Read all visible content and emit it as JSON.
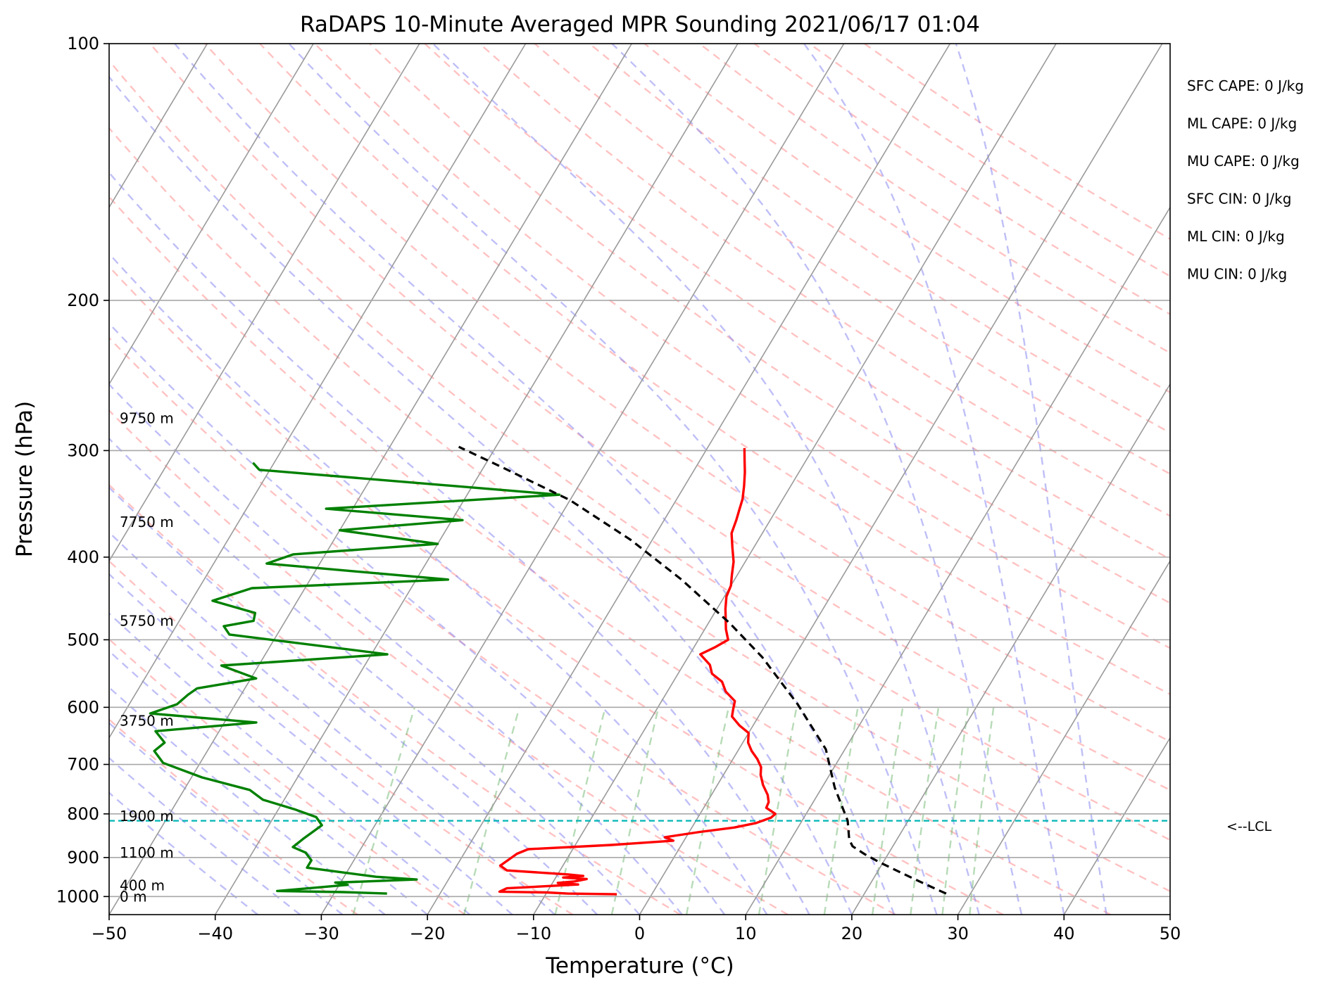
{
  "chart_data": {
    "type": "line",
    "title": "RaDAPS 10-Minute Averaged MPR Sounding 2021/06/17 01:04",
    "xlabel": "Temperature (°C)",
    "ylabel": "Pressure (hPa)",
    "xlim": [
      -50,
      50
    ],
    "ylim": [
      1050,
      100
    ],
    "y_scale": "log",
    "skew": "skew-T",
    "grid": true,
    "x_ticks": [
      -50,
      -40,
      -30,
      -20,
      -10,
      0,
      10,
      20,
      30,
      40,
      50
    ],
    "x_tick_labels": [
      "−50",
      "−40",
      "−30",
      "−20",
      "−10",
      "0",
      "10",
      "20",
      "30",
      "40",
      "50"
    ],
    "y_ticks": [
      1000,
      900,
      800,
      700,
      600,
      500,
      400,
      300,
      200,
      100
    ],
    "y_tick_labels": [
      "1000",
      "900",
      "800",
      "700",
      "600",
      "500",
      "400",
      "300",
      "200",
      "100"
    ],
    "height_labels": [
      {
        "label": "9750 m",
        "p": 275
      },
      {
        "label": "7750 m",
        "p": 364
      },
      {
        "label": "5750 m",
        "p": 475
      },
      {
        "label": "3750 m",
        "p": 622
      },
      {
        "label": "1900 m",
        "p": 805
      },
      {
        "label": "1100 m",
        "p": 888
      },
      {
        "label": "400 m",
        "p": 970
      },
      {
        "label": "0 m",
        "p": 1000
      }
    ],
    "indices": [
      "SFC CAPE: 0 J/kg",
      "ML CAPE: 0 J/kg",
      "MU CAPE: 0 J/kg",
      "SFC CIN: 0 J/kg",
      "ML CIN: 0 J/kg",
      "MU CIN: 0 J/kg"
    ],
    "lcl": {
      "label": "<--LCL",
      "p": 815
    },
    "series": [
      {
        "role": "temperature",
        "color": "#ff0000",
        "points": [
          [
            -16.5,
            298
          ],
          [
            -15.8,
            308
          ],
          [
            -15.1,
            318
          ],
          [
            -14.4,
            330
          ],
          [
            -13.8,
            342
          ],
          [
            -13.5,
            352
          ],
          [
            -13.2,
            362
          ],
          [
            -12.9,
            375
          ],
          [
            -12.0,
            390
          ],
          [
            -11.1,
            405
          ],
          [
            -10.5,
            420
          ],
          [
            -10.0,
            432
          ],
          [
            -9.8,
            445
          ],
          [
            -9.2,
            460
          ],
          [
            -8.5,
            475
          ],
          [
            -8.0,
            486
          ],
          [
            -7.2,
            500
          ],
          [
            -8.0,
            510
          ],
          [
            -9.0,
            520
          ],
          [
            -7.5,
            535
          ],
          [
            -6.8,
            548
          ],
          [
            -5.4,
            560
          ],
          [
            -4.5,
            575
          ],
          [
            -3.1,
            590
          ],
          [
            -2.8,
            603
          ],
          [
            -2.5,
            615
          ],
          [
            -1.3,
            630
          ],
          [
            0.0,
            643
          ],
          [
            0.5,
            660
          ],
          [
            1.3,
            675
          ],
          [
            2.3,
            690
          ],
          [
            3.1,
            705
          ],
          [
            3.5,
            720
          ],
          [
            4.3,
            740
          ],
          [
            5.3,
            760
          ],
          [
            5.8,
            775
          ],
          [
            5.9,
            787
          ],
          [
            7.1,
            800
          ],
          [
            6.9,
            808
          ],
          [
            5.8,
            820
          ],
          [
            4.0,
            830
          ],
          [
            1.0,
            840
          ],
          [
            -2.0,
            852
          ],
          [
            -1.0,
            860
          ],
          [
            -6.6,
            870
          ],
          [
            -14.2,
            880
          ],
          [
            -15.0,
            891
          ],
          [
            -15.9,
            920
          ],
          [
            -15.0,
            932
          ],
          [
            -9.0,
            942
          ],
          [
            -7.5,
            946
          ],
          [
            -9.3,
            950
          ],
          [
            -7.0,
            954
          ],
          [
            -8.0,
            960
          ],
          [
            -9.5,
            964
          ],
          [
            -7.5,
            968
          ],
          [
            -14.0,
            978
          ],
          [
            -14.5,
            987
          ],
          [
            -10.0,
            989
          ],
          [
            -8.0,
            992
          ],
          [
            -3.3,
            994
          ]
        ]
      },
      {
        "role": "dewpoint",
        "color": "#008000",
        "points": [
          [
            -62.0,
            310
          ],
          [
            -61.0,
            316
          ],
          [
            -31.3,
            338
          ],
          [
            -52.5,
            351
          ],
          [
            -39.0,
            362
          ],
          [
            -50.0,
            372
          ],
          [
            -40.0,
            386
          ],
          [
            -53.0,
            397
          ],
          [
            -55.0,
            407
          ],
          [
            -37.0,
            425
          ],
          [
            -55.0,
            435
          ],
          [
            -58.0,
            450
          ],
          [
            -53.3,
            465
          ],
          [
            -53.0,
            475
          ],
          [
            -55.5,
            482
          ],
          [
            -54.5,
            493
          ],
          [
            -38.5,
            520
          ],
          [
            -53.5,
            536
          ],
          [
            -49.5,
            555
          ],
          [
            -54.5,
            570
          ],
          [
            -55.0,
            580
          ],
          [
            -55.5,
            595
          ],
          [
            -57.5,
            610
          ],
          [
            -47.0,
            625
          ],
          [
            -56.0,
            640
          ],
          [
            -54.5,
            660
          ],
          [
            -55.0,
            675
          ],
          [
            -53.5,
            697
          ],
          [
            -49.0,
            725
          ],
          [
            -43.8,
            750
          ],
          [
            -42.0,
            770
          ],
          [
            -38.5,
            790
          ],
          [
            -36.0,
            807
          ],
          [
            -35.0,
            825
          ],
          [
            -36.0,
            856
          ],
          [
            -36.5,
            875
          ],
          [
            -35.0,
            888
          ],
          [
            -34.0,
            907
          ],
          [
            -34.0,
            925
          ],
          [
            -27.0,
            948
          ],
          [
            -23.0,
            955
          ],
          [
            -30.5,
            963
          ],
          [
            -29.2,
            969
          ],
          [
            -35.5,
            985
          ],
          [
            -29.2,
            988
          ],
          [
            -25.0,
            992
          ]
        ]
      },
      {
        "role": "parcel",
        "color": "#000000",
        "style": "dashed",
        "points": [
          [
            27.7,
            992
          ],
          [
            27.0,
            985
          ],
          [
            26.0,
            975
          ],
          [
            24.5,
            960
          ],
          [
            21.5,
            930
          ],
          [
            19.5,
            910
          ],
          [
            17.8,
            892
          ],
          [
            16.2,
            873
          ],
          [
            15.5,
            857
          ],
          [
            14.3,
            815
          ],
          [
            11.2,
            745
          ],
          [
            8.2,
            672
          ],
          [
            3.0,
            595
          ],
          [
            -3.0,
            524
          ],
          [
            -8.0,
            478
          ],
          [
            -15.0,
            425
          ],
          [
            -22.0,
            382
          ],
          [
            -30.0,
            343
          ],
          [
            -38.5,
            313
          ],
          [
            -43.5,
            297
          ]
        ]
      }
    ]
  }
}
